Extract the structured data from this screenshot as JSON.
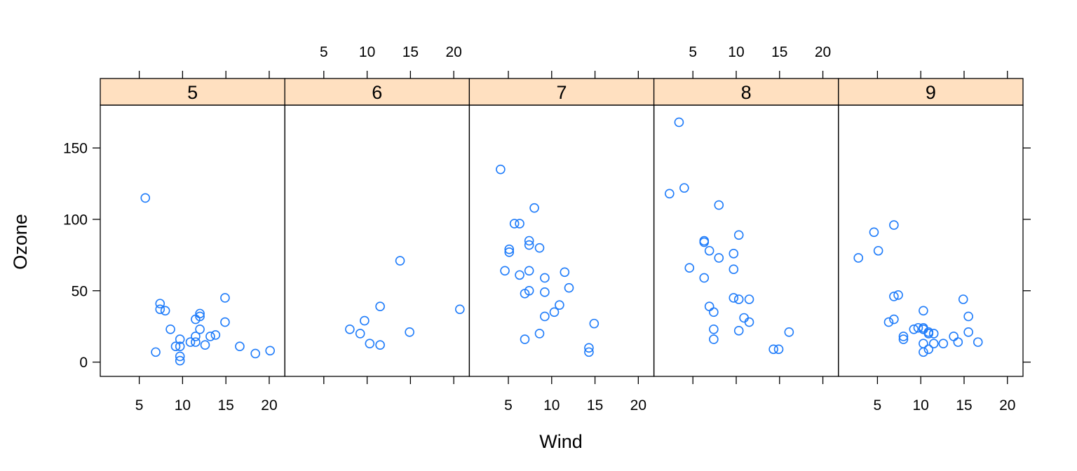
{
  "chart_data": {
    "type": "scatter",
    "layout": "trellis panels, one per Month, shared axes",
    "xlabel": "Wind",
    "ylabel": "Ozone",
    "xlim": [
      0.5,
      21.8
    ],
    "ylim": [
      -10,
      180
    ],
    "x_ticks": [
      5,
      10,
      15,
      20
    ],
    "y_ticks": [
      0,
      50,
      100,
      150
    ],
    "strip_color": "#ffe0c0",
    "point_color": "#1f7cfa",
    "panels": [
      {
        "label": "5",
        "points": [
          [
            5.7,
            115
          ],
          [
            6.9,
            7
          ],
          [
            7.4,
            41
          ],
          [
            7.4,
            37
          ],
          [
            8.0,
            36
          ],
          [
            8.6,
            23
          ],
          [
            9.2,
            11
          ],
          [
            9.7,
            16
          ],
          [
            9.7,
            11
          ],
          [
            9.7,
            4
          ],
          [
            9.7,
            1
          ],
          [
            10.9,
            14
          ],
          [
            11.5,
            18
          ],
          [
            11.5,
            30
          ],
          [
            11.5,
            14
          ],
          [
            12.0,
            34
          ],
          [
            12.0,
            32
          ],
          [
            12.0,
            23
          ],
          [
            12.6,
            12
          ],
          [
            13.2,
            18
          ],
          [
            13.8,
            19
          ],
          [
            14.9,
            45
          ],
          [
            14.9,
            28
          ],
          [
            16.6,
            11
          ],
          [
            18.4,
            6
          ],
          [
            20.1,
            8
          ]
        ]
      },
      {
        "label": "6",
        "points": [
          [
            8.0,
            23
          ],
          [
            9.2,
            20
          ],
          [
            9.7,
            29
          ],
          [
            10.3,
            13
          ],
          [
            11.5,
            39
          ],
          [
            11.5,
            12
          ],
          [
            13.8,
            71
          ],
          [
            14.9,
            21
          ],
          [
            20.7,
            37
          ]
        ]
      },
      {
        "label": "7",
        "points": [
          [
            4.1,
            135
          ],
          [
            4.6,
            64
          ],
          [
            5.1,
            79
          ],
          [
            5.1,
            77
          ],
          [
            5.7,
            97
          ],
          [
            6.3,
            97
          ],
          [
            6.3,
            61
          ],
          [
            6.9,
            48
          ],
          [
            6.9,
            16
          ],
          [
            7.4,
            85
          ],
          [
            7.4,
            82
          ],
          [
            7.4,
            64
          ],
          [
            7.4,
            50
          ],
          [
            8.0,
            108
          ],
          [
            8.6,
            80
          ],
          [
            8.6,
            20
          ],
          [
            9.2,
            59
          ],
          [
            9.2,
            49
          ],
          [
            9.2,
            32
          ],
          [
            10.3,
            35
          ],
          [
            10.9,
            40
          ],
          [
            11.5,
            63
          ],
          [
            12.0,
            52
          ],
          [
            14.3,
            10
          ],
          [
            14.3,
            7
          ],
          [
            14.9,
            27
          ]
        ]
      },
      {
        "label": "8",
        "points": [
          [
            2.3,
            118
          ],
          [
            3.4,
            168
          ],
          [
            4.0,
            122
          ],
          [
            4.6,
            66
          ],
          [
            6.3,
            85
          ],
          [
            6.3,
            84
          ],
          [
            6.3,
            59
          ],
          [
            6.9,
            78
          ],
          [
            6.9,
            39
          ],
          [
            7.4,
            35
          ],
          [
            7.4,
            23
          ],
          [
            7.4,
            16
          ],
          [
            8.0,
            110
          ],
          [
            8.0,
            73
          ],
          [
            9.7,
            76
          ],
          [
            9.7,
            65
          ],
          [
            9.7,
            45
          ],
          [
            10.3,
            89
          ],
          [
            10.3,
            44
          ],
          [
            10.3,
            22
          ],
          [
            10.9,
            31
          ],
          [
            11.5,
            44
          ],
          [
            11.5,
            28
          ],
          [
            14.3,
            9
          ],
          [
            14.9,
            9
          ],
          [
            16.1,
            21
          ]
        ]
      },
      {
        "label": "9",
        "points": [
          [
            2.8,
            73
          ],
          [
            4.6,
            91
          ],
          [
            5.1,
            78
          ],
          [
            6.3,
            28
          ],
          [
            6.9,
            96
          ],
          [
            6.9,
            46
          ],
          [
            6.9,
            30
          ],
          [
            7.4,
            47
          ],
          [
            8.0,
            18
          ],
          [
            8.0,
            16
          ],
          [
            9.2,
            23
          ],
          [
            9.7,
            24
          ],
          [
            10.3,
            36
          ],
          [
            10.3,
            24
          ],
          [
            10.3,
            23
          ],
          [
            10.3,
            13
          ],
          [
            10.3,
            7
          ],
          [
            10.9,
            21
          ],
          [
            10.9,
            20
          ],
          [
            10.9,
            9
          ],
          [
            11.5,
            20
          ],
          [
            11.5,
            13
          ],
          [
            12.6,
            13
          ],
          [
            13.8,
            18
          ],
          [
            14.3,
            14
          ],
          [
            14.9,
            44
          ],
          [
            15.5,
            32
          ],
          [
            15.5,
            21
          ],
          [
            16.6,
            14
          ]
        ]
      }
    ]
  }
}
